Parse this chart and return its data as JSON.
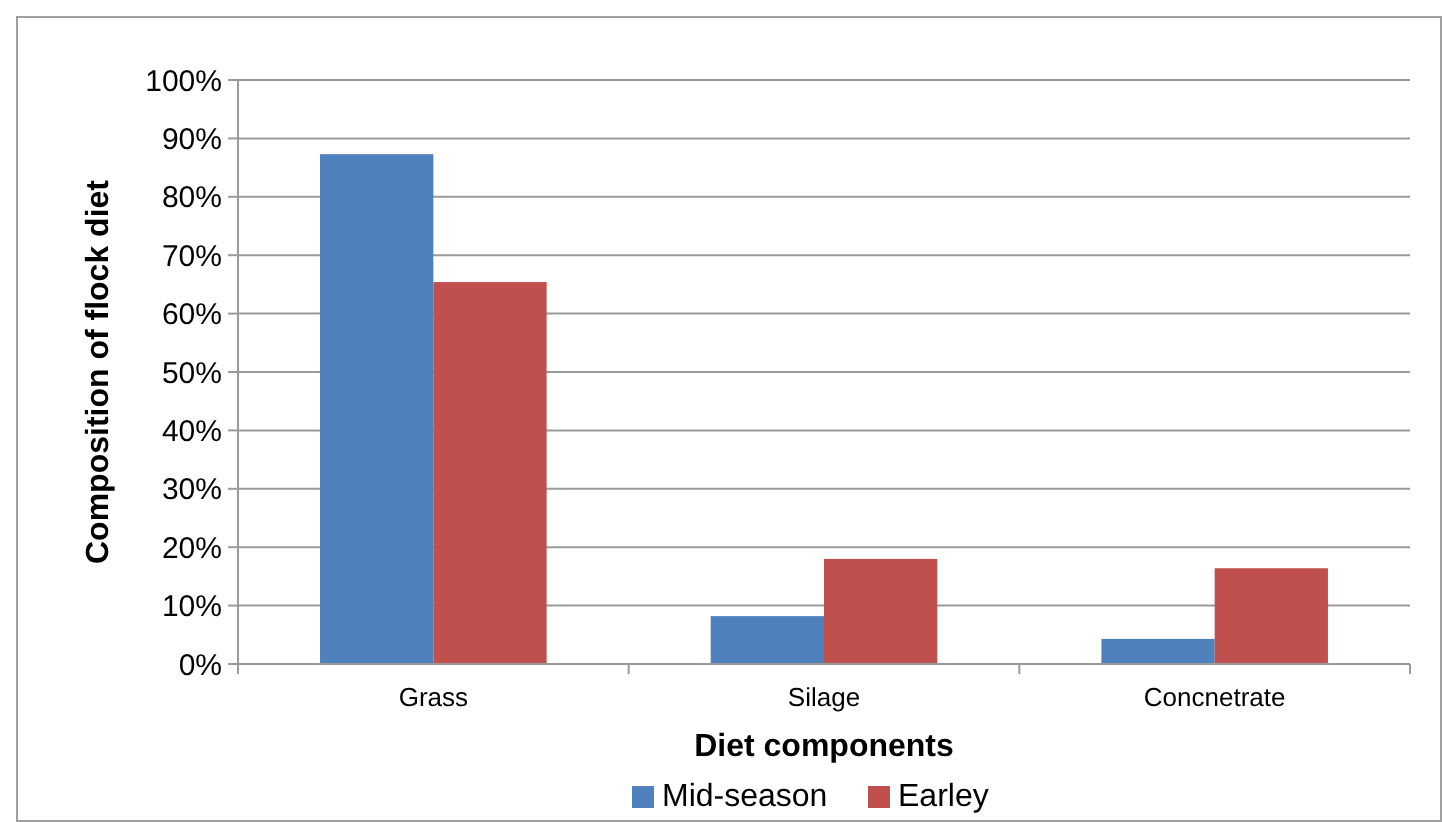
{
  "chart_data": {
    "type": "bar",
    "xlabel": "Diet components",
    "ylabel": "Composition of flock diet",
    "categories": [
      "Grass",
      "Silage",
      "Concnetrate"
    ],
    "series": [
      {
        "name": "Mid-season",
        "color": "#4f81bd",
        "values": [
          87.3,
          8.2,
          4.3
        ]
      },
      {
        "name": "Earley",
        "color": "#c0504d",
        "values": [
          65.4,
          18.0,
          16.4
        ]
      }
    ],
    "ylim": [
      0,
      100
    ],
    "yticks": [
      {
        "value": 0,
        "label": "0%"
      },
      {
        "value": 10,
        "label": "10%"
      },
      {
        "value": 20,
        "label": "20%"
      },
      {
        "value": 30,
        "label": "30%"
      },
      {
        "value": 40,
        "label": "40%"
      },
      {
        "value": 50,
        "label": "50%"
      },
      {
        "value": 60,
        "label": "60%"
      },
      {
        "value": 70,
        "label": "70%"
      },
      {
        "value": 80,
        "label": "80%"
      },
      {
        "value": 90,
        "label": "90%"
      },
      {
        "value": 100,
        "label": "100%"
      }
    ],
    "grid": "y",
    "legend": "bottom"
  }
}
